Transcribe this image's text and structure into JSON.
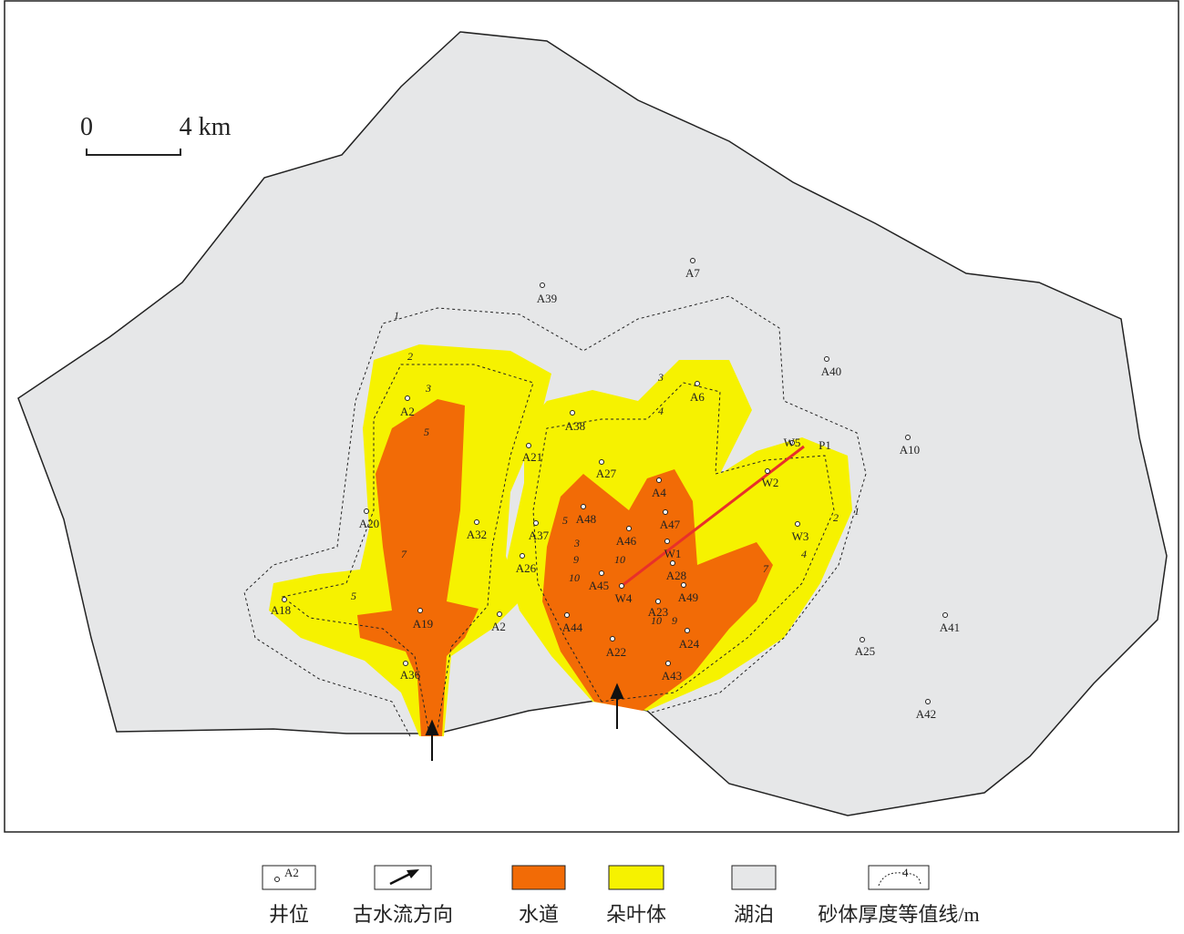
{
  "scale_bar": {
    "start": "0",
    "end": "4 km"
  },
  "wells": [
    "A7",
    "A39",
    "A40",
    "A6",
    "A2",
    "A38",
    "A10",
    "W5",
    "P1",
    "A21",
    "A27",
    "W2",
    "A4",
    "A48",
    "A20",
    "A32",
    "A37",
    "W3",
    "A47",
    "A46",
    "W1",
    "A26",
    "A28",
    "A45",
    "A49",
    "W4",
    "A18",
    "A23",
    "A19",
    "A2",
    "A44",
    "A22",
    "A24",
    "A25",
    "A41",
    "A43",
    "A36",
    "A42"
  ],
  "contour_labels": [
    1,
    2,
    3,
    4,
    5,
    7,
    9,
    10,
    10,
    10,
    1,
    2,
    3,
    4,
    5,
    7,
    9,
    3,
    5
  ],
  "legend": {
    "well_sample": "A2",
    "contour_sample": "4",
    "items": [
      "井位",
      "古水流方向",
      "水道",
      "朵叶体",
      "湖泊",
      "砂体厚度等值线/m"
    ]
  }
}
